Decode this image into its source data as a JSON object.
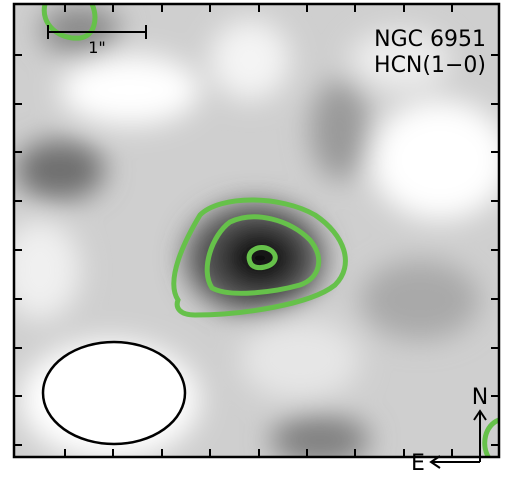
{
  "labels": {
    "object": "NGC 6951",
    "line": "HCN(1−0)"
  },
  "scale_bar": "1\"",
  "compass": {
    "north": "N",
    "east": "E"
  }
}
